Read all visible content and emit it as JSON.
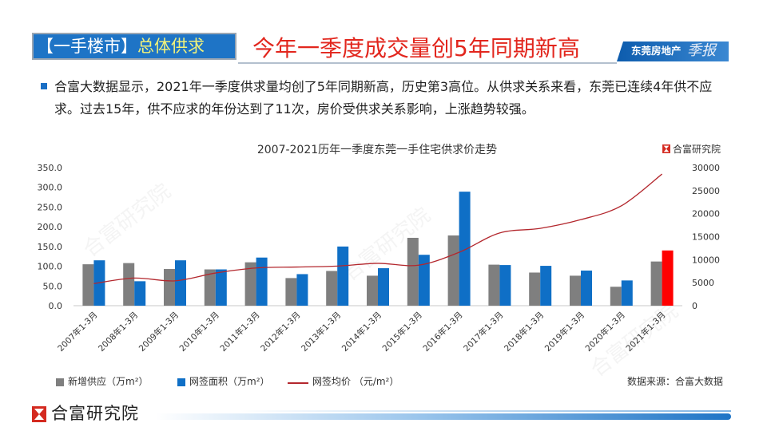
{
  "header": {
    "tag_prefix": "【一手楼市】",
    "tag_topic": "总体供求",
    "headline": "今年一季度成交量创5年同期新高",
    "banner_text": "东莞房地产",
    "banner_logo_text": "季报"
  },
  "summary": {
    "bullet_icon": "square-bullet-icon",
    "text": "合富大数据显示，2021年一季度供求量均创了5年同期新高，历史第3高位。从供求关系来看，东莞已连续4年供不应求。过去15年，供不应求的年份达到了11次，房价受供求关系影响，上涨趋势较强。"
  },
  "chart_brand": {
    "icon": "hefu-logo-icon",
    "text": "合富研究院"
  },
  "chart_data": {
    "type": "bar",
    "title": "2007-2021历年一季度东莞一手住宅供求价走势",
    "categories": [
      "2007年1-3月",
      "2008年1-3月",
      "2009年1-3月",
      "2010年1-3月",
      "2011年1-3月",
      "2012年1-3月",
      "2013年1-3月",
      "2014年1-3月",
      "2015年1-3月",
      "2016年1-3月",
      "2017年1-3月",
      "2018年1-3月",
      "2019年1-3月",
      "2020年1-3月",
      "2021年1-3月"
    ],
    "series": [
      {
        "name": "新增供应（万m²）",
        "type": "bar",
        "axis": "left",
        "color": "#7f7f7f",
        "values": [
          105,
          108,
          93,
          92,
          110,
          70,
          88,
          76,
          172,
          178,
          104,
          84,
          76,
          48,
          112
        ]
      },
      {
        "name": "网签面积（万m²）",
        "type": "bar",
        "axis": "left",
        "color": "#0f6fc6",
        "highlight_category": "2021年1-3月",
        "highlight_color": "#ff0000",
        "values": [
          115,
          62,
          115,
          92,
          122,
          80,
          150,
          95,
          129,
          289,
          103,
          101,
          89,
          64,
          140
        ]
      },
      {
        "name": "网签均价 （元/m²）",
        "type": "line",
        "axis": "right",
        "color": "#b3272d",
        "values": [
          4800,
          6000,
          5400,
          7100,
          8200,
          8400,
          8600,
          9200,
          8800,
          11600,
          15800,
          16800,
          18700,
          21700,
          28600
        ]
      }
    ],
    "y_left": {
      "lim": [
        0,
        350
      ],
      "ticks": [
        "0.0",
        "50.0",
        "100.0",
        "150.0",
        "200.0",
        "250.0",
        "300.0",
        "350.0"
      ]
    },
    "y_right": {
      "lim": [
        0,
        30000
      ],
      "ticks": [
        "0",
        "5000",
        "10000",
        "15000",
        "20000",
        "25000",
        "30000"
      ]
    },
    "grid": false,
    "legend_position": "bottom"
  },
  "source": "数据来源：合富大数据",
  "footer": {
    "icon": "hefu-logo-icon",
    "brand": "合富研究院"
  },
  "watermark": "合富研究院",
  "colors": {
    "header_blue": "#1e74c6",
    "headline_red": "#e2261d",
    "topic_yellow": "#f2f27a",
    "brand_red": "#d42a20"
  }
}
